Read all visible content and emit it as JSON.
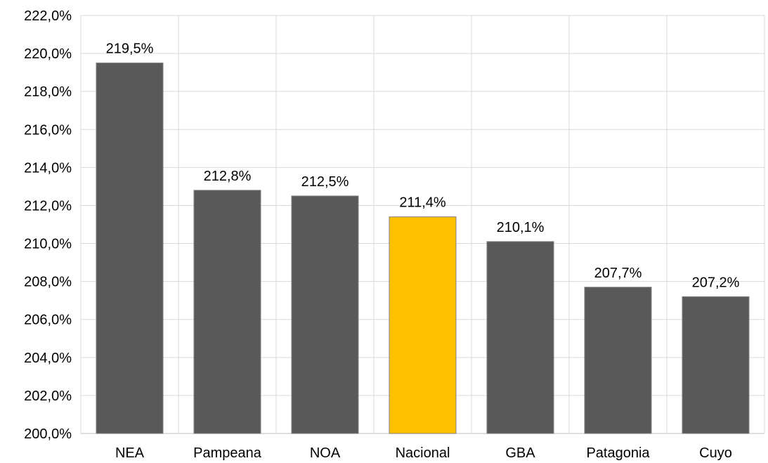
{
  "chart_data": {
    "type": "bar",
    "categories": [
      "NEA",
      "Pampeana",
      "NOA",
      "Nacional",
      "GBA",
      "Patagonia",
      "Cuyo"
    ],
    "values": [
      219.5,
      212.8,
      212.5,
      211.4,
      210.1,
      207.7,
      207.2
    ],
    "data_labels": [
      "219,5%",
      "212,8%",
      "212,5%",
      "211,4%",
      "210,1%",
      "207,7%",
      "207,2%"
    ],
    "title": "",
    "xlabel": "",
    "ylabel": "",
    "ylim": [
      200,
      222
    ],
    "y_ticks": [
      200,
      202,
      204,
      206,
      208,
      210,
      212,
      214,
      216,
      218,
      220,
      222
    ],
    "y_tick_labels": [
      "200,0%",
      "202,0%",
      "204,0%",
      "206,0%",
      "208,0%",
      "210,0%",
      "212,0%",
      "214,0%",
      "216,0%",
      "218,0%",
      "220,0%",
      "222,0%"
    ],
    "grid": true,
    "legend": "none",
    "colors": {
      "default_bar": "#595959",
      "highlight_bar": "#ffc000",
      "bar_border": "#7f7f7f"
    },
    "highlight_category": "Nacional"
  }
}
